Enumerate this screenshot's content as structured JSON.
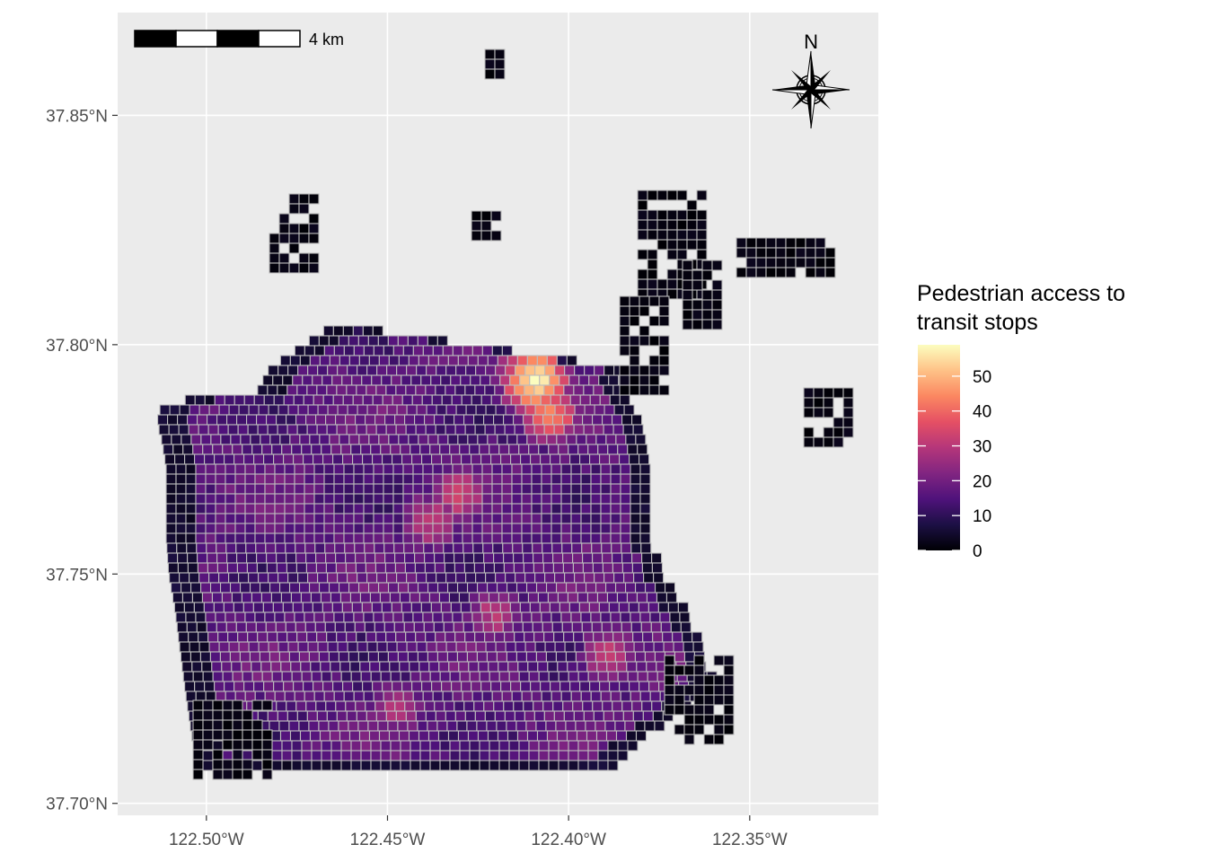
{
  "chart_data": {
    "type": "heatmap",
    "title": "",
    "xlabel": "",
    "ylabel": "",
    "x_ticks": [
      "122.50°W",
      "122.45°W",
      "122.40°W",
      "122.35°W"
    ],
    "x_tick_values": [
      -122.5,
      -122.45,
      -122.4,
      -122.35
    ],
    "y_ticks": [
      "37.70°N",
      "37.75°N",
      "37.80°N",
      "37.85°N"
    ],
    "y_tick_values": [
      37.7,
      37.75,
      37.8,
      37.85
    ],
    "xlim": [
      -122.5245,
      -122.3145
    ],
    "ylim": [
      37.6974,
      37.8724
    ],
    "grid": true,
    "legend": {
      "title_line1": "Pedestrian access to",
      "title_line2": "transit stops",
      "ticks": [
        "0",
        "10",
        "20",
        "30",
        "40",
        "50"
      ],
      "tick_values": [
        0,
        10,
        20,
        30,
        40,
        50
      ],
      "range": [
        0,
        59
      ],
      "placement": "right",
      "palette": [
        "#000004",
        "#1c1044",
        "#4f127b",
        "#812581",
        "#b5367a",
        "#e55064",
        "#fb8761",
        "#fec287",
        "#fcfdbf"
      ]
    },
    "hotspots": [
      {
        "lon": -122.4105,
        "lat": 37.7935,
        "value": 59
      },
      {
        "lon": -122.4065,
        "lat": 37.7862,
        "value": 44
      },
      {
        "lon": -122.415,
        "lat": 37.801,
        "value": 40
      },
      {
        "lon": -122.431,
        "lat": 37.7685,
        "value": 34
      },
      {
        "lon": -122.4395,
        "lat": 37.7625,
        "value": 31
      },
      {
        "lon": -122.422,
        "lat": 37.742,
        "value": 30
      },
      {
        "lon": -122.39,
        "lat": 37.7335,
        "value": 32
      },
      {
        "lon": -122.449,
        "lat": 37.722,
        "value": 29
      }
    ],
    "scale_bar_label": "4 km",
    "north_arrow_label": "N"
  }
}
